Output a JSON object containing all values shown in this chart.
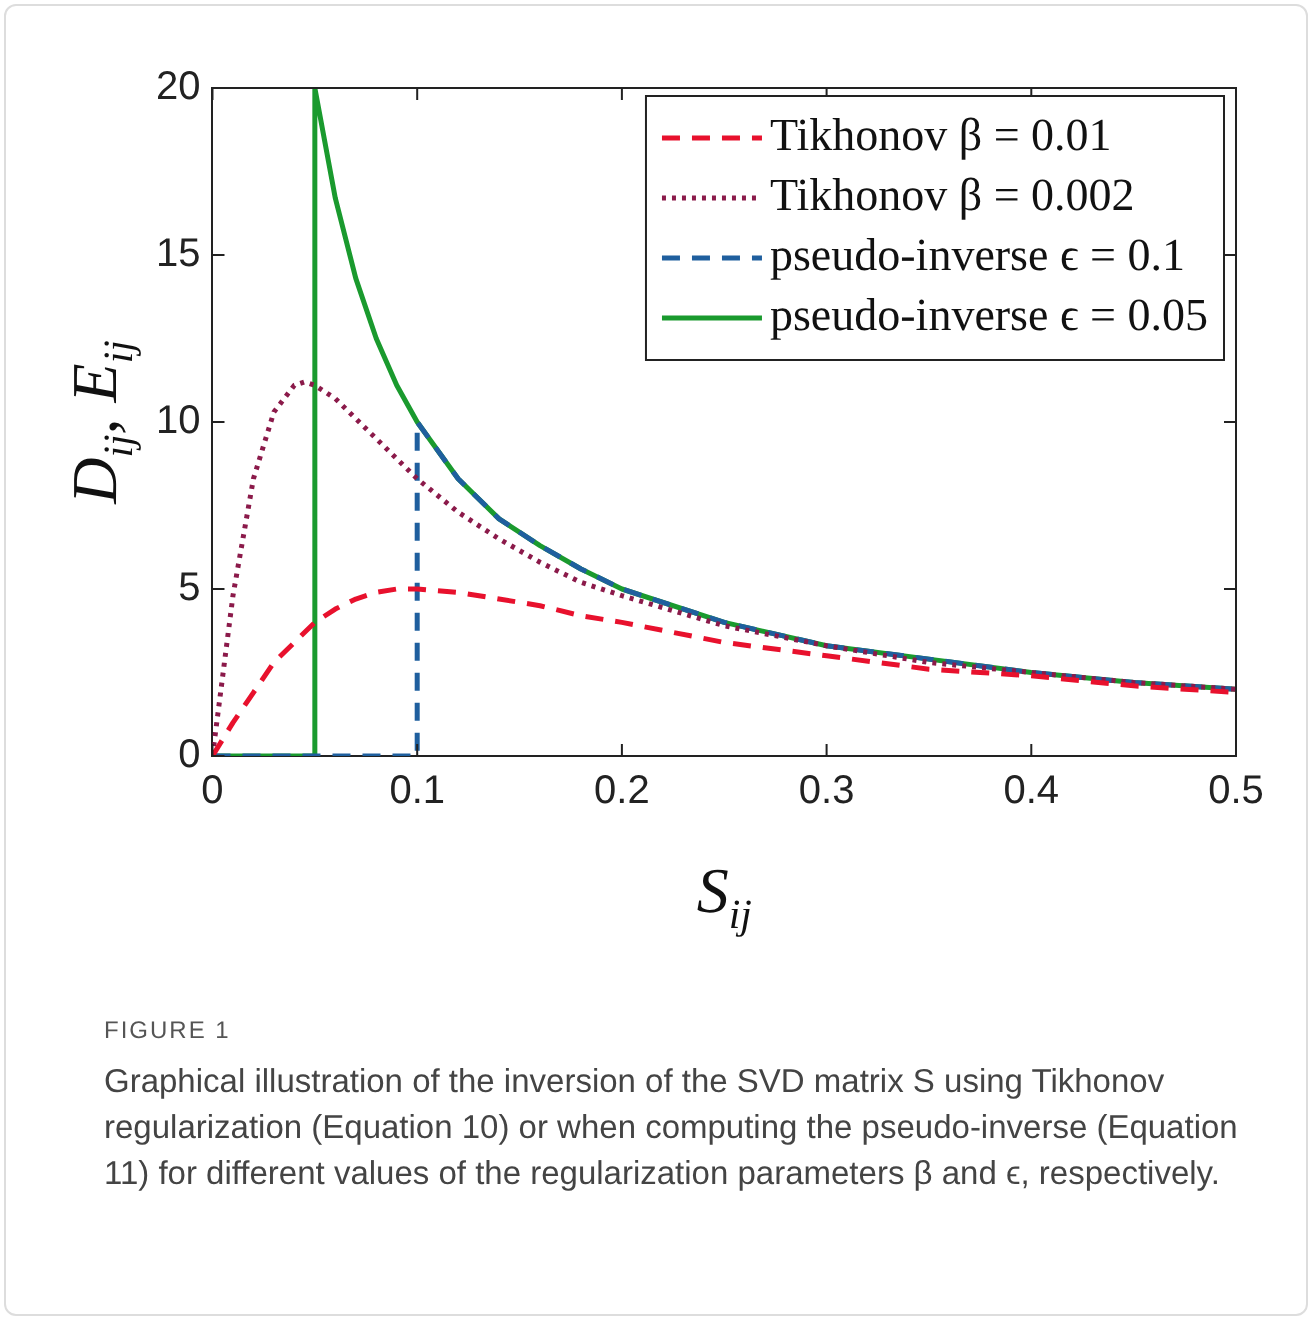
{
  "chart_data": {
    "type": "line",
    "xlabel": "S$_{ij}$",
    "ylabel": "D$_{ij}$, E$_{ij}$",
    "xlim": [
      0,
      0.5
    ],
    "xticks": [
      0,
      0.1,
      0.2,
      0.3,
      0.4,
      0.5
    ],
    "ylim": [
      0,
      20
    ],
    "yticks": [
      0,
      5,
      10,
      15,
      20
    ],
    "grid": false,
    "legend": "top right",
    "marker": "none",
    "series": [
      {
        "name": "Tikhonov β = 0.01",
        "color": "#e8112d",
        "line_style": "dashed",
        "x": [
          0,
          0.01,
          0.02,
          0.03,
          0.04,
          0.05,
          0.06,
          0.07,
          0.08,
          0.09,
          0.1,
          0.12,
          0.14,
          0.16,
          0.18,
          0.2,
          0.25,
          0.3,
          0.35,
          0.4,
          0.45,
          0.5
        ],
        "values": [
          0,
          1,
          1.9,
          2.8,
          3.4,
          4,
          4.4,
          4.7,
          4.9,
          5,
          5,
          4.9,
          4.7,
          4.5,
          4.2,
          4,
          3.4,
          3,
          2.6,
          2.4,
          2.1,
          1.9
        ]
      },
      {
        "name": "Tikhonov β = 0.002",
        "color": "#8b1a4a",
        "line_style": "dotted",
        "x": [
          0,
          0.01,
          0.02,
          0.03,
          0.04,
          0.045,
          0.05,
          0.06,
          0.07,
          0.08,
          0.09,
          0.1,
          0.12,
          0.14,
          0.16,
          0.18,
          0.2,
          0.25,
          0.3,
          0.35,
          0.4,
          0.45,
          0.5
        ],
        "values": [
          0,
          4.8,
          8.3,
          10.3,
          11.1,
          11.2,
          11.1,
          10.7,
          10.1,
          9.5,
          8.9,
          8.3,
          7.3,
          6.5,
          5.8,
          5.2,
          4.8,
          3.9,
          3.3,
          2.8,
          2.5,
          2.2,
          2
        ]
      },
      {
        "name": "pseudo-inverse ϵ = 0.1",
        "color": "#1f5f9e",
        "line_style": "dashed",
        "x": [
          0,
          0.1,
          0.1,
          0.12,
          0.14,
          0.16,
          0.18,
          0.2,
          0.25,
          0.3,
          0.35,
          0.4,
          0.45,
          0.5
        ],
        "values": [
          0,
          0,
          10,
          8.3,
          7.1,
          6.3,
          5.6,
          5,
          4,
          3.3,
          2.9,
          2.5,
          2.2,
          2
        ]
      },
      {
        "name": "pseudo-inverse ϵ = 0.05",
        "color": "#1a9a2e",
        "line_style": "solid",
        "x": [
          0,
          0.05,
          0.05,
          0.06,
          0.07,
          0.08,
          0.09,
          0.1,
          0.12,
          0.14,
          0.16,
          0.18,
          0.2,
          0.25,
          0.3,
          0.35,
          0.4,
          0.45,
          0.5
        ],
        "values": [
          0,
          0,
          20,
          16.7,
          14.3,
          12.5,
          11.1,
          10,
          8.3,
          7.1,
          6.3,
          5.6,
          5,
          4,
          3.3,
          2.9,
          2.5,
          2.2,
          2
        ]
      }
    ],
    "annotations": [
      "FIGURE 1",
      "Graphical illustration of the inversion of the SVD matrix S using Tikhonov regularization (Equation 10) or when computing the pseudo-inverse (Equation 11) for different values of the regularization parameters β and ϵ, respectively."
    ]
  }
}
